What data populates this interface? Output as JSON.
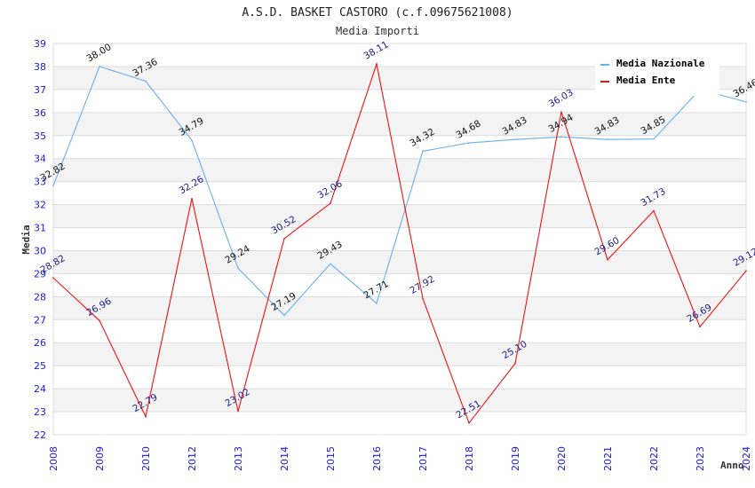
{
  "chart_data": {
    "type": "line",
    "title": "A.S.D. BASKET CASTORO (c.f.09675621008)",
    "subtitle": "Media Importi",
    "xlabel": "Anno",
    "ylabel": "Media",
    "ylim": [
      22,
      39
    ],
    "yticks": [
      "22",
      "23",
      "24",
      "25",
      "26",
      "27",
      "28",
      "29",
      "30",
      "31",
      "32",
      "33",
      "34",
      "35",
      "36",
      "37",
      "38",
      "39"
    ],
    "categories": [
      "2008",
      "2009",
      "2010",
      "2012",
      "2013",
      "2014",
      "2015",
      "2016",
      "2017",
      "2018",
      "2019",
      "2020",
      "2021",
      "2022",
      "2023",
      "2024"
    ],
    "grid": true,
    "legend_position": "top-right",
    "series": [
      {
        "name": "Media Nazionale",
        "color": "#6aaeea",
        "values": [
          32.82,
          38.0,
          37.36,
          34.79,
          29.24,
          27.19,
          29.43,
          27.71,
          34.32,
          34.68,
          34.83,
          34.94,
          34.83,
          34.85,
          37.0,
          36.46
        ],
        "labels": [
          "32.82",
          "38.00",
          "37.36",
          "34.79",
          "29.24",
          "27.19",
          "29.43",
          "27.71",
          "34.32",
          "34.68",
          "34.83",
          "34.94",
          "34.83",
          "34.85",
          "",
          "36.46"
        ]
      },
      {
        "name": "Media Ente",
        "color": "#ee1111",
        "values": [
          28.82,
          26.96,
          22.79,
          32.26,
          23.02,
          30.52,
          32.06,
          38.11,
          27.92,
          22.51,
          25.1,
          36.03,
          29.6,
          31.73,
          26.69,
          29.12
        ],
        "labels": [
          "28.82",
          "26.96",
          "22.79",
          "32.26",
          "23.02",
          "30.52",
          "32.06",
          "38.11",
          "27.92",
          "22.51",
          "25.10",
          "36.03",
          "29.60",
          "31.73",
          "26.69",
          "29.12"
        ]
      }
    ]
  }
}
